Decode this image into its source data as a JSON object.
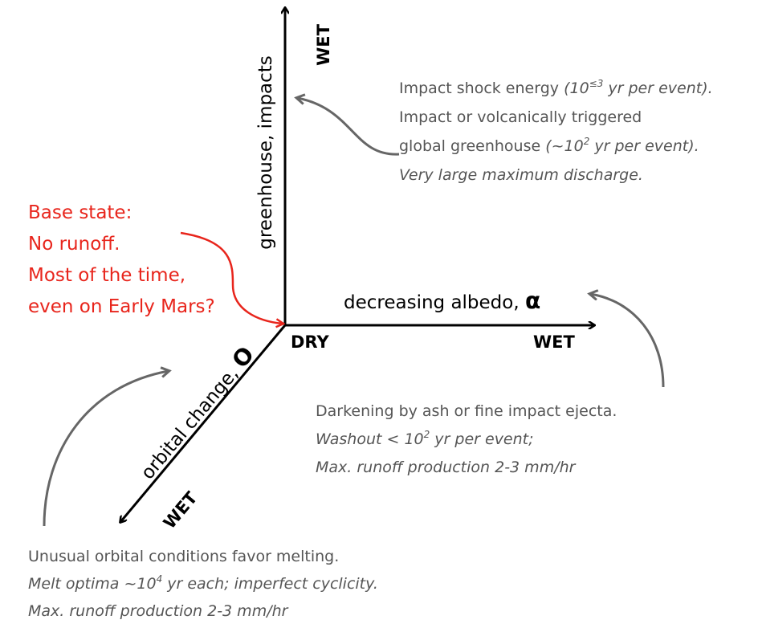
{
  "axes": {
    "vertical": {
      "label": "greenhouse, impacts",
      "end": "WET"
    },
    "horizontal": {
      "label": "decreasing albedo, ",
      "symbol": "α",
      "start": "DRY",
      "end": "WET"
    },
    "diagonal": {
      "label": "orbital change, ",
      "symbol": "O",
      "end": "WET"
    }
  },
  "base_state": {
    "lines": [
      "Base state:",
      "No runoff.",
      "Most of the time,",
      "even on Early Mars?"
    ]
  },
  "notes": {
    "impact": {
      "lines": [
        [
          "Impact shock energy ",
          "(10",
          "≤3",
          " yr per event)."
        ],
        [
          "Impact or volcanically triggered"
        ],
        [
          "global greenhouse ",
          "(~10",
          "2",
          " yr per event)."
        ],
        [
          "Very large maximum discharge."
        ]
      ]
    },
    "albedo": {
      "lines": [
        [
          "Darkening by ash or fine impact ejecta."
        ],
        [
          "Washout < 10",
          "2",
          " yr per event;"
        ],
        [
          "Max. runoff production 2-3 mm/hr"
        ]
      ]
    },
    "orbital": {
      "lines": [
        [
          "Unusual orbital conditions favor melting."
        ],
        [
          "Melt optima ~10",
          "4",
          " yr each; imperfect cyclicity."
        ],
        [
          "Max. runoff production 2-3 mm/hr"
        ]
      ]
    }
  }
}
